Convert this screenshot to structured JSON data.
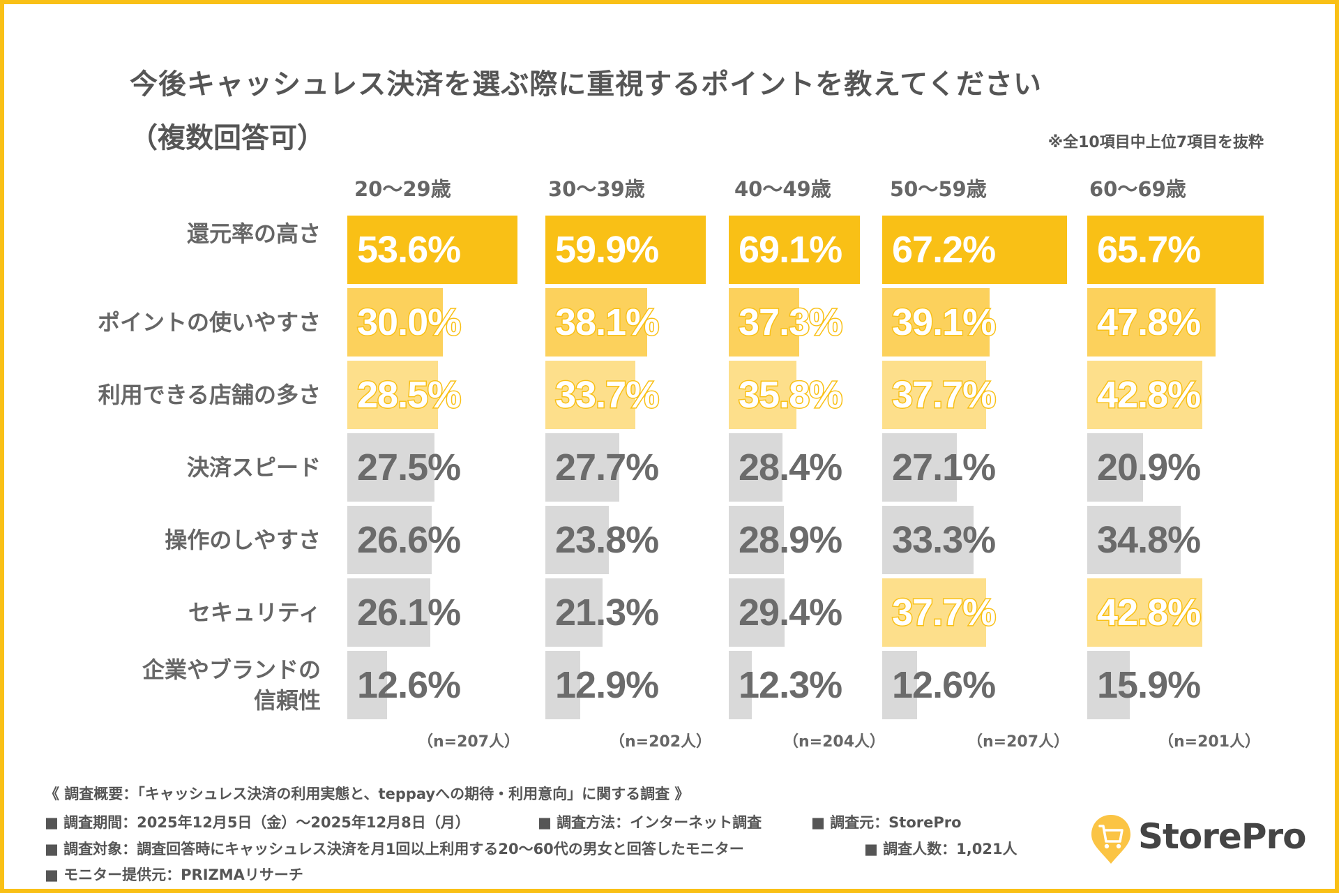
{
  "title": {
    "line1": "今後キャッシュレス決済を選ぶ際に重視するポイントを教えてください",
    "line2": "（複数回答可）",
    "note": "※全10項目中上位7項目を抜粋"
  },
  "colors": {
    "border": "#F9C016",
    "rank1": "#F9C016",
    "rank2": "#FCD15C",
    "rank3": "#FDDF8B",
    "other": "#D9D9D9"
  },
  "chart_data": {
    "type": "bar",
    "orientation": "horizontal",
    "title": "今後キャッシュレス決済を選ぶ際に重視するポイントを教えてください（複数回答可）",
    "unit": "%",
    "categories": [
      "還元率の高さ",
      "ポイントの使いやすさ",
      "利用できる店舗の多さ",
      "決済スピード",
      "操作のしやすさ",
      "セキュリティ",
      "企業やブランドの信頼性"
    ],
    "series": [
      {
        "name": "20〜29歳",
        "n": "（n=207人）",
        "values": [
          53.6,
          30.0,
          28.5,
          27.5,
          26.6,
          26.1,
          12.6
        ],
        "ranks": [
          1,
          2,
          3,
          0,
          0,
          0,
          0
        ]
      },
      {
        "name": "30〜39歳",
        "n": "（n=202人）",
        "values": [
          59.9,
          38.1,
          33.7,
          27.7,
          23.8,
          21.3,
          12.9
        ],
        "ranks": [
          1,
          2,
          3,
          0,
          0,
          0,
          0
        ]
      },
      {
        "name": "40〜49歳",
        "n": "（n=204人）",
        "values": [
          69.1,
          37.3,
          35.8,
          28.4,
          28.9,
          29.4,
          12.3
        ],
        "ranks": [
          1,
          2,
          3,
          0,
          0,
          0,
          0
        ]
      },
      {
        "name": "50〜59歳",
        "n": "（n=207人）",
        "values": [
          67.2,
          39.1,
          37.7,
          27.1,
          33.3,
          37.7,
          12.6
        ],
        "ranks": [
          1,
          2,
          3,
          0,
          0,
          3,
          0
        ]
      },
      {
        "name": "60〜69歳",
        "n": "（n=201人）",
        "values": [
          65.7,
          47.8,
          42.8,
          20.9,
          34.8,
          42.8,
          15.9
        ],
        "ranks": [
          1,
          2,
          3,
          0,
          0,
          3,
          0
        ]
      }
    ],
    "labels": [
      [
        "53.6%",
        "30.0%",
        "28.5%",
        "27.5%",
        "26.6%",
        "26.1%",
        "12.6%"
      ],
      [
        "59.9%",
        "38.1%",
        "33.7%",
        "27.7%",
        "23.8%",
        "21.3%",
        "12.9%"
      ],
      [
        "69.1%",
        "37.3%",
        "35.8%",
        "28.4%",
        "28.9%",
        "29.4%",
        "12.3%"
      ],
      [
        "67.2%",
        "39.1%",
        "37.7%",
        "27.1%",
        "33.3%",
        "37.7%",
        "12.6%"
      ],
      [
        "65.7%",
        "47.8%",
        "42.8%",
        "20.9%",
        "34.8%",
        "42.8%",
        "15.9%"
      ]
    ],
    "xlabel": "",
    "ylabel": "",
    "legend": "none",
    "grid": false
  },
  "row_labels": [
    [
      "還元率の高さ"
    ],
    [
      "ポイントの使いやすさ"
    ],
    [
      "利用できる店舗の多さ"
    ],
    [
      "決済スピード"
    ],
    [
      "操作のしやすさ"
    ],
    [
      "セキュリティ"
    ],
    [
      "企業やブランドの",
      "信頼性"
    ]
  ],
  "footer": {
    "overview": "《 調査概要：「キャッシュレス決済の利用実態と、teppayへの期待・利用意向」に関する調査 》",
    "period": "■ 調査期間：2025年12月5日（金）〜2025年12月8日（月）",
    "method": "■ 調査方法：インターネット調査",
    "source": "■ 調査元：StorePro",
    "target": "■ 調査対象：調査回答時にキャッシュレス決済を月1回以上利用する20〜60代の男女と回答したモニター",
    "count": "■ 調査人数：1,021人",
    "provider": "■ モニター提供元：PRIZMAリサーチ"
  },
  "logo": {
    "text": "StorePro",
    "icon": "cart-pin-icon",
    "color": "#FBC444"
  }
}
